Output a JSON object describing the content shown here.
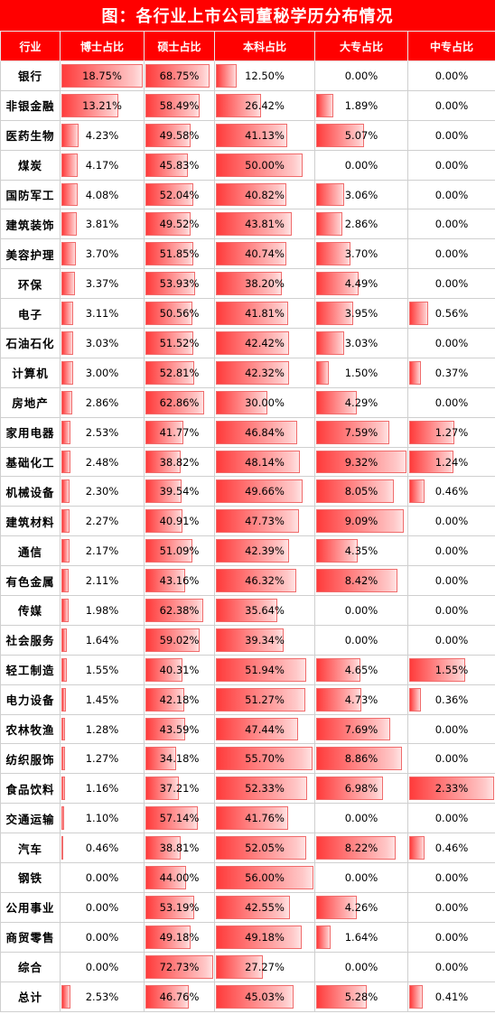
{
  "title": "图：各行业上市公司董秘学历分布情况",
  "headers": [
    "行业",
    "博士占比",
    "硕士占比",
    "本科占比",
    "大专占比",
    "中专占比"
  ],
  "rows": [
    {
      "industry": "银行",
      "values": [
        18.75,
        68.75,
        12.5,
        0,
        0
      ],
      "labels": [
        "18.75%",
        "68.75%",
        "12.50%",
        "0.00%",
        "0.00%"
      ]
    },
    {
      "industry": "非银金融",
      "values": [
        13.21,
        58.49,
        26.42,
        1.89,
        0
      ],
      "labels": [
        "13.21%",
        "58.49%",
        "26.42%",
        "1.89%",
        "0.00%"
      ]
    },
    {
      "industry": "医药生物",
      "values": [
        4.23,
        49.58,
        41.13,
        5.07,
        0
      ],
      "labels": [
        "4.23%",
        "49.58%",
        "41.13%",
        "5.07%",
        "0.00%"
      ]
    },
    {
      "industry": "煤炭",
      "values": [
        4.17,
        45.83,
        50,
        0,
        0
      ],
      "labels": [
        "4.17%",
        "45.83%",
        "50.00%",
        "0.00%",
        "0.00%"
      ]
    },
    {
      "industry": "国防军工",
      "values": [
        4.08,
        52.04,
        40.82,
        3.06,
        0
      ],
      "labels": [
        "4.08%",
        "52.04%",
        "40.82%",
        "3.06%",
        "0.00%"
      ]
    },
    {
      "industry": "建筑装饰",
      "values": [
        3.81,
        49.52,
        43.81,
        2.86,
        0
      ],
      "labels": [
        "3.81%",
        "49.52%",
        "43.81%",
        "2.86%",
        "0.00%"
      ]
    },
    {
      "industry": "美容护理",
      "values": [
        3.7,
        51.85,
        40.74,
        3.7,
        0
      ],
      "labels": [
        "3.70%",
        "51.85%",
        "40.74%",
        "3.70%",
        "0.00%"
      ]
    },
    {
      "industry": "环保",
      "values": [
        3.37,
        53.93,
        38.2,
        4.49,
        0
      ],
      "labels": [
        "3.37%",
        "53.93%",
        "38.20%",
        "4.49%",
        "0.00%"
      ]
    },
    {
      "industry": "电子",
      "values": [
        3.11,
        50.56,
        41.81,
        3.95,
        0.56
      ],
      "labels": [
        "3.11%",
        "50.56%",
        "41.81%",
        "3.95%",
        "0.56%"
      ]
    },
    {
      "industry": "石油石化",
      "values": [
        3.03,
        51.52,
        42.42,
        3.03,
        0
      ],
      "labels": [
        "3.03%",
        "51.52%",
        "42.42%",
        "3.03%",
        "0.00%"
      ]
    },
    {
      "industry": "计算机",
      "values": [
        3.0,
        52.81,
        42.32,
        1.5,
        0.37
      ],
      "labels": [
        "3.00%",
        "52.81%",
        "42.32%",
        "1.50%",
        "0.37%"
      ]
    },
    {
      "industry": "房地产",
      "values": [
        2.86,
        62.86,
        30,
        4.29,
        0
      ],
      "labels": [
        "2.86%",
        "62.86%",
        "30.00%",
        "4.29%",
        "0.00%"
      ]
    },
    {
      "industry": "家用电器",
      "values": [
        2.53,
        41.77,
        46.84,
        7.59,
        1.27
      ],
      "labels": [
        "2.53%",
        "41.77%",
        "46.84%",
        "7.59%",
        "1.27%"
      ]
    },
    {
      "industry": "基础化工",
      "values": [
        2.48,
        38.82,
        48.14,
        9.32,
        1.24
      ],
      "labels": [
        "2.48%",
        "38.82%",
        "48.14%",
        "9.32%",
        "1.24%"
      ]
    },
    {
      "industry": "机械设备",
      "values": [
        2.3,
        39.54,
        49.66,
        8.05,
        0.46
      ],
      "labels": [
        "2.30%",
        "39.54%",
        "49.66%",
        "8.05%",
        "0.46%"
      ]
    },
    {
      "industry": "建筑材料",
      "values": [
        2.27,
        40.91,
        47.73,
        9.09,
        0
      ],
      "labels": [
        "2.27%",
        "40.91%",
        "47.73%",
        "9.09%",
        "0.00%"
      ]
    },
    {
      "industry": "通信",
      "values": [
        2.17,
        51.09,
        42.39,
        4.35,
        0
      ],
      "labels": [
        "2.17%",
        "51.09%",
        "42.39%",
        "4.35%",
        "0.00%"
      ]
    },
    {
      "industry": "有色金属",
      "values": [
        2.11,
        43.16,
        46.32,
        8.42,
        0
      ],
      "labels": [
        "2.11%",
        "43.16%",
        "46.32%",
        "8.42%",
        "0.00%"
      ]
    },
    {
      "industry": "传媒",
      "values": [
        1.98,
        62.38,
        35.64,
        0,
        0
      ],
      "labels": [
        "1.98%",
        "62.38%",
        "35.64%",
        "0.00%",
        "0.00%"
      ]
    },
    {
      "industry": "社会服务",
      "values": [
        1.64,
        59.02,
        39.34,
        0,
        0
      ],
      "labels": [
        "1.64%",
        "59.02%",
        "39.34%",
        "0.00%",
        "0.00%"
      ]
    },
    {
      "industry": "轻工制造",
      "values": [
        1.55,
        40.31,
        51.94,
        4.65,
        1.55
      ],
      "labels": [
        "1.55%",
        "40.31%",
        "51.94%",
        "4.65%",
        "1.55%"
      ]
    },
    {
      "industry": "电力设备",
      "values": [
        1.45,
        42.18,
        51.27,
        4.73,
        0.36
      ],
      "labels": [
        "1.45%",
        "42.18%",
        "51.27%",
        "4.73%",
        "0.36%"
      ]
    },
    {
      "industry": "农林牧渔",
      "values": [
        1.28,
        43.59,
        47.44,
        7.69,
        0
      ],
      "labels": [
        "1.28%",
        "43.59%",
        "47.44%",
        "7.69%",
        "0.00%"
      ]
    },
    {
      "industry": "纺织服饰",
      "values": [
        1.27,
        34.18,
        55.7,
        8.86,
        0
      ],
      "labels": [
        "1.27%",
        "34.18%",
        "55.70%",
        "8.86%",
        "0.00%"
      ]
    },
    {
      "industry": "食品饮料",
      "values": [
        1.16,
        37.21,
        52.33,
        6.98,
        2.33
      ],
      "labels": [
        "1.16%",
        "37.21%",
        "52.33%",
        "6.98%",
        "2.33%"
      ]
    },
    {
      "industry": "交通运输",
      "values": [
        1.1,
        57.14,
        41.76,
        0,
        0
      ],
      "labels": [
        "1.10%",
        "57.14%",
        "41.76%",
        "0.00%",
        "0.00%"
      ]
    },
    {
      "industry": "汽车",
      "values": [
        0.46,
        38.81,
        52.05,
        8.22,
        0.46
      ],
      "labels": [
        "0.46%",
        "38.81%",
        "52.05%",
        "8.22%",
        "0.46%"
      ]
    },
    {
      "industry": "钢铁",
      "values": [
        0,
        44,
        56,
        0,
        0
      ],
      "labels": [
        "0.00%",
        "44.00%",
        "56.00%",
        "0.00%",
        "0.00%"
      ]
    },
    {
      "industry": "公用事业",
      "values": [
        0,
        53.19,
        42.55,
        4.26,
        0
      ],
      "labels": [
        "0.00%",
        "53.19%",
        "42.55%",
        "4.26%",
        "0.00%"
      ]
    },
    {
      "industry": "商贸零售",
      "values": [
        0,
        49.18,
        49.18,
        1.64,
        0
      ],
      "labels": [
        "0.00%",
        "49.18%",
        "49.18%",
        "1.64%",
        "0.00%"
      ]
    },
    {
      "industry": "综合",
      "values": [
        0,
        72.73,
        27.27,
        0,
        0
      ],
      "labels": [
        "0.00%",
        "72.73%",
        "27.27%",
        "0.00%",
        "0.00%"
      ]
    },
    {
      "industry": "总计",
      "values": [
        2.53,
        46.76,
        45.03,
        5.28,
        0.41
      ],
      "labels": [
        "2.53%",
        "46.76%",
        "45.03%",
        "5.28%",
        "0.41%"
      ]
    }
  ],
  "column_max": [
    18.75,
    72.73,
    56.0,
    9.32,
    2.33
  ],
  "colors": {
    "header_bg": "#ff0000",
    "header_text": "#ffffff",
    "bar_dark": "#ff3b3b",
    "bar_light": "#ffe3e3"
  }
}
